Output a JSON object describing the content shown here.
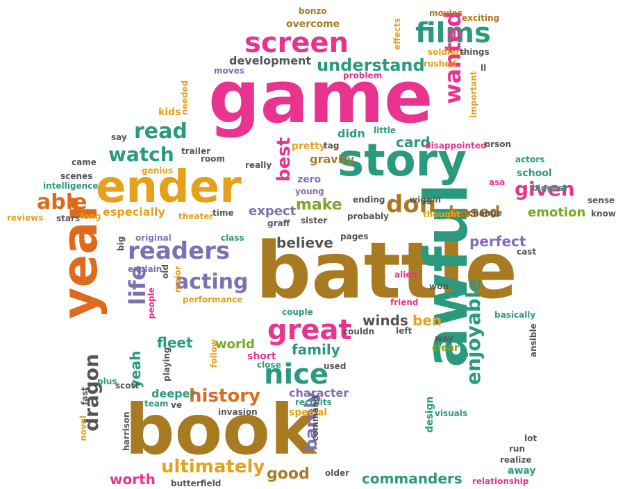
{
  "colors": {
    "pink": "#e8338f",
    "teal": "#2a9a7e",
    "orange": "#e06a1b",
    "gold": "#e3a21a",
    "brown": "#a87a22",
    "purple": "#7e6fb5",
    "green": "#78a72a",
    "gray": "#555555"
  },
  "words": [
    {
      "text": "game",
      "color": "pink"
    },
    {
      "text": "battle",
      "color": "brown"
    },
    {
      "text": "book",
      "color": "brown"
    },
    {
      "text": "story",
      "color": "teal"
    },
    {
      "text": "ender",
      "color": "gold"
    },
    {
      "text": "awful",
      "color": "teal"
    },
    {
      "text": "year",
      "color": "orange"
    },
    {
      "text": "films",
      "color": "teal"
    },
    {
      "text": "screen",
      "color": "pink"
    },
    {
      "text": "understand",
      "color": "teal"
    },
    {
      "text": "wanted",
      "color": "pink"
    },
    {
      "text": "read",
      "color": "teal"
    },
    {
      "text": "watch",
      "color": "teal"
    },
    {
      "text": "able",
      "color": "orange"
    },
    {
      "text": "best",
      "color": "pink"
    },
    {
      "text": "given",
      "color": "pink"
    },
    {
      "text": "don",
      "color": "brown"
    },
    {
      "text": "make",
      "color": "green"
    },
    {
      "text": "based",
      "color": "brown"
    },
    {
      "text": "emotion",
      "color": "green"
    },
    {
      "text": "readers",
      "color": "purple"
    },
    {
      "text": "acting",
      "color": "purple"
    },
    {
      "text": "great",
      "color": "pink"
    },
    {
      "text": "nice",
      "color": "teal"
    },
    {
      "text": "life",
      "color": "purple"
    },
    {
      "text": "history",
      "color": "orange"
    },
    {
      "text": "enjoyable",
      "color": "teal"
    },
    {
      "text": "dragon",
      "color": "gray"
    },
    {
      "text": "barely",
      "color": "purple"
    },
    {
      "text": "ultimately",
      "color": "gold"
    },
    {
      "text": "commanders",
      "color": "teal"
    },
    {
      "text": "good",
      "color": "brown"
    },
    {
      "text": "worth",
      "color": "pink"
    },
    {
      "text": "perfect",
      "color": "purple"
    },
    {
      "text": "believe",
      "color": "gray"
    },
    {
      "text": "fleet",
      "color": "teal"
    },
    {
      "text": "world",
      "color": "green"
    },
    {
      "text": "family",
      "color": "teal"
    },
    {
      "text": "winds",
      "color": "gray"
    },
    {
      "text": "ben",
      "color": "gold"
    },
    {
      "text": "yeah",
      "color": "teal"
    },
    {
      "text": "character",
      "color": "purple"
    },
    {
      "text": "deeper",
      "color": "teal"
    },
    {
      "text": "card",
      "color": "teal"
    },
    {
      "text": "especially",
      "color": "gold"
    },
    {
      "text": "expect",
      "color": "purple"
    },
    {
      "text": "development",
      "color": "gray"
    },
    {
      "text": "overcome",
      "color": "brown"
    },
    {
      "text": "zero",
      "color": "purple"
    },
    {
      "text": "gravity",
      "color": "brown"
    },
    {
      "text": "didn",
      "color": "teal"
    },
    {
      "text": "pretty",
      "color": "gold"
    },
    {
      "text": "tag",
      "color": "gray"
    },
    {
      "text": "trailer",
      "color": "gray"
    },
    {
      "text": "room",
      "color": "gray"
    },
    {
      "text": "kids",
      "color": "gold"
    },
    {
      "text": "say",
      "color": "gray"
    },
    {
      "text": "came",
      "color": "gray"
    },
    {
      "text": "genius",
      "color": "gold"
    },
    {
      "text": "scenes",
      "color": "gray"
    },
    {
      "text": "intelligence",
      "color": "teal"
    },
    {
      "text": "reviews",
      "color": "gold"
    },
    {
      "text": "stars",
      "color": "gray"
    },
    {
      "text": "long",
      "color": "gold"
    },
    {
      "text": "theater",
      "color": "gold"
    },
    {
      "text": "time",
      "color": "gray"
    },
    {
      "text": "really",
      "color": "gray"
    },
    {
      "text": "young",
      "color": "purple"
    },
    {
      "text": "graff",
      "color": "gray"
    },
    {
      "text": "sister",
      "color": "gray"
    },
    {
      "text": "probably",
      "color": "gray"
    },
    {
      "text": "ending",
      "color": "gray"
    },
    {
      "text": "wiggin",
      "color": "gray"
    },
    {
      "text": "thought",
      "color": "gold"
    },
    {
      "text": "change",
      "color": "gray"
    },
    {
      "text": "asa",
      "color": "pink"
    },
    {
      "text": "school",
      "color": "teal"
    },
    {
      "text": "actors",
      "color": "teal"
    },
    {
      "text": "biggest",
      "color": "teal"
    },
    {
      "text": "sense",
      "color": "gray"
    },
    {
      "text": "know",
      "color": "gray"
    },
    {
      "text": "disappointed",
      "color": "pink"
    },
    {
      "text": "orson",
      "color": "gray"
    },
    {
      "text": "little",
      "color": "teal"
    },
    {
      "text": "important",
      "color": "gold"
    },
    {
      "text": "ll",
      "color": "gray"
    },
    {
      "text": "rushed",
      "color": "gold"
    },
    {
      "text": "problem",
      "color": "pink"
    },
    {
      "text": "soldiers",
      "color": "gold"
    },
    {
      "text": "things",
      "color": "gray"
    },
    {
      "text": "movies",
      "color": "brown"
    },
    {
      "text": "exciting",
      "color": "brown"
    },
    {
      "text": "effects",
      "color": "gold"
    },
    {
      "text": "bonzo",
      "color": "brown"
    },
    {
      "text": "moves",
      "color": "purple"
    },
    {
      "text": "needed",
      "color": "gold"
    },
    {
      "text": "original",
      "color": "purple"
    },
    {
      "text": "class",
      "color": "teal"
    },
    {
      "text": "pages",
      "color": "gray"
    },
    {
      "text": "cast",
      "color": "gray"
    },
    {
      "text": "big",
      "color": "gray"
    },
    {
      "text": "explain",
      "color": "purple"
    },
    {
      "text": "old",
      "color": "gray"
    },
    {
      "text": "major",
      "color": "gold"
    },
    {
      "text": "people",
      "color": "pink"
    },
    {
      "text": "performance",
      "color": "gold"
    },
    {
      "text": "alien",
      "color": "pink"
    },
    {
      "text": "won",
      "color": "gray"
    },
    {
      "text": "friend",
      "color": "pink"
    },
    {
      "text": "couple",
      "color": "teal"
    },
    {
      "text": "couldn",
      "color": "gray"
    },
    {
      "text": "left",
      "color": "gray"
    },
    {
      "text": "basically",
      "color": "teal"
    },
    {
      "text": "way",
      "color": "gray"
    },
    {
      "text": "clear",
      "color": "green"
    },
    {
      "text": "ansible",
      "color": "gray"
    },
    {
      "text": "follow",
      "color": "gold"
    },
    {
      "text": "playing",
      "color": "gray"
    },
    {
      "text": "close",
      "color": "teal"
    },
    {
      "text": "short",
      "color": "pink"
    },
    {
      "text": "used",
      "color": "gray"
    },
    {
      "text": "plus",
      "color": "teal"
    },
    {
      "text": "scott",
      "color": "gray"
    },
    {
      "text": "team",
      "color": "teal"
    },
    {
      "text": "ve",
      "color": "gray"
    },
    {
      "text": "fast",
      "color": "gray"
    },
    {
      "text": "invasion",
      "color": "gray"
    },
    {
      "text": "recruits",
      "color": "teal"
    },
    {
      "text": "special",
      "color": "gold"
    },
    {
      "text": "novel",
      "color": "gold"
    },
    {
      "text": "harrison",
      "color": "gray"
    },
    {
      "text": "command",
      "color": "gray"
    },
    {
      "text": "older",
      "color": "gray"
    },
    {
      "text": "design",
      "color": "teal"
    },
    {
      "text": "visuals",
      "color": "teal"
    },
    {
      "text": "lot",
      "color": "gray"
    },
    {
      "text": "run",
      "color": "gray"
    },
    {
      "text": "realize",
      "color": "gray"
    },
    {
      "text": "away",
      "color": "teal"
    },
    {
      "text": "relationship",
      "color": "pink"
    },
    {
      "text": "butterfield",
      "color": "gray"
    }
  ]
}
